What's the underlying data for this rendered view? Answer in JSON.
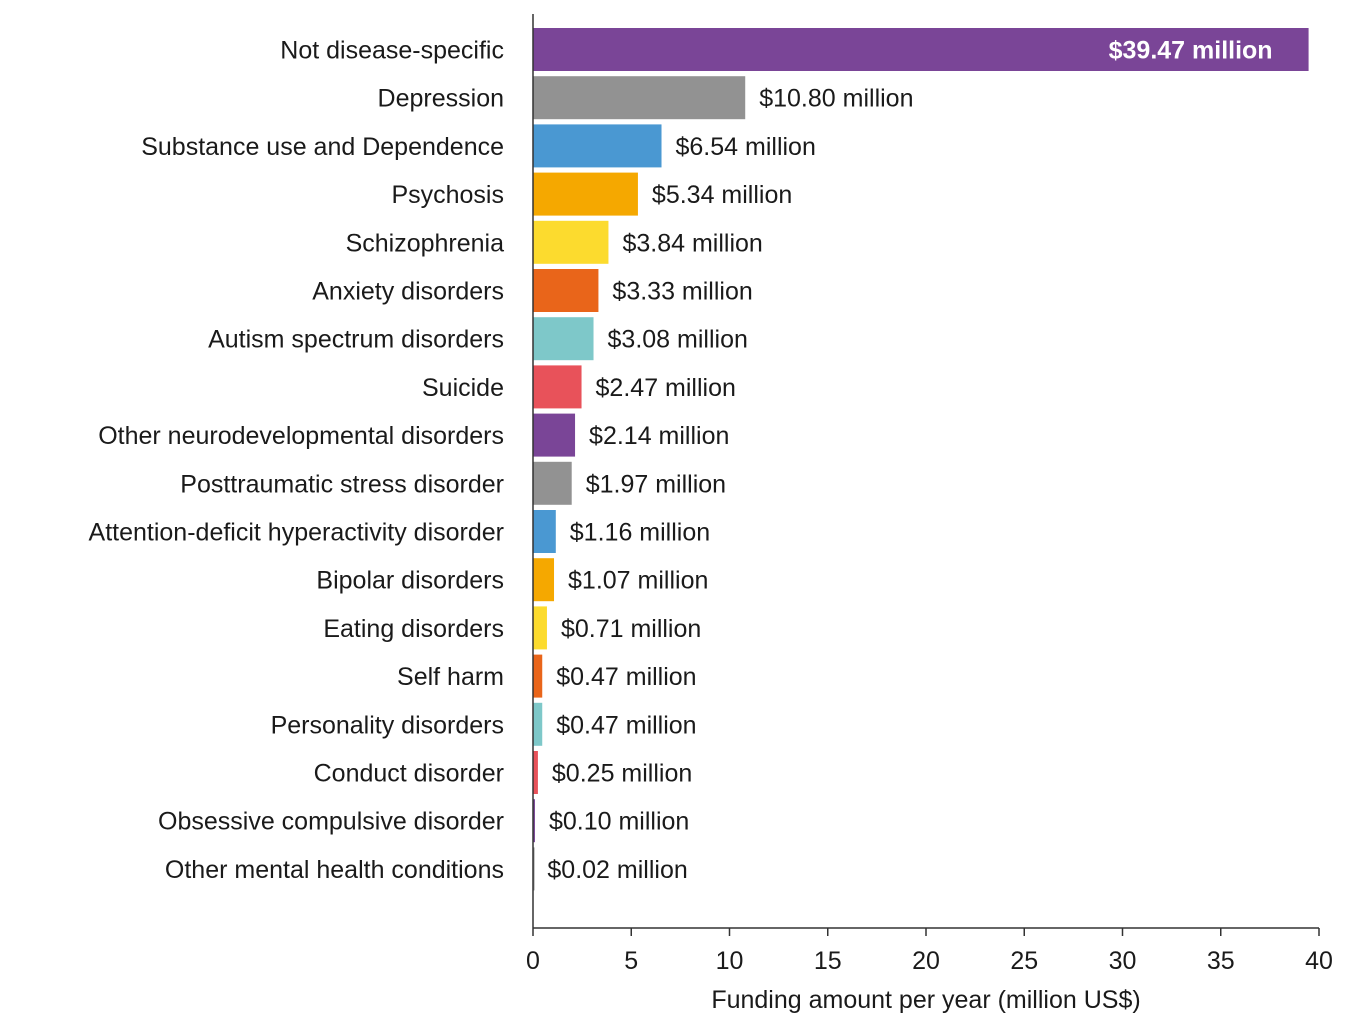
{
  "chart_data": {
    "type": "bar",
    "orientation": "horizontal",
    "title": "",
    "xlabel": "Funding amount per year (million US$)",
    "ylabel": "",
    "xlim": [
      0,
      40
    ],
    "xticks": [
      0,
      5,
      10,
      15,
      20,
      25,
      30,
      35,
      40
    ],
    "grid": false,
    "legend": "none",
    "categories": [
      "Not disease-specific",
      "Depression",
      "Substance use and Dependence",
      "Psychosis",
      "Schizophrenia",
      "Anxiety disorders",
      "Autism spectrum disorders",
      "Suicide",
      "Other neurodevelopmental disorders",
      "Posttraumatic  stress disorder",
      "Attention-deficit hyperactivity disorder",
      "Bipolar disorders",
      "Eating disorders",
      "Self harm",
      "Personality disorders",
      "Conduct disorder",
      "Obsessive  compulsive disorder",
      "Other mental health conditions"
    ],
    "values": [
      39.47,
      10.8,
      6.54,
      5.34,
      3.84,
      3.33,
      3.08,
      2.47,
      2.14,
      1.97,
      1.16,
      1.07,
      0.71,
      0.47,
      0.47,
      0.25,
      0.1,
      0.02
    ],
    "data_labels": [
      "$39.47 million",
      "$10.80 million",
      "$6.54 million",
      "$5.34 million",
      "$3.84 million",
      "$3.33 million",
      "$3.08 million",
      "$2.47 million",
      "$2.14 million",
      "$1.97 million",
      "$1.16 million",
      "$1.07 million",
      "$0.71 million",
      "$0.47 million",
      "$0.47 million",
      "$0.25 million",
      "$0.10 million",
      "$0.02 million"
    ],
    "colors": [
      "#7a4597",
      "#929292",
      "#4a98d2",
      "#f5a800",
      "#fcdb2e",
      "#e9651a",
      "#7ec8c9",
      "#e8525a",
      "#7a4597",
      "#929292",
      "#4a98d2",
      "#f5a800",
      "#fcdb2e",
      "#e9651a",
      "#7ec8c9",
      "#e8525a",
      "#7a4597",
      "#929292"
    ]
  }
}
